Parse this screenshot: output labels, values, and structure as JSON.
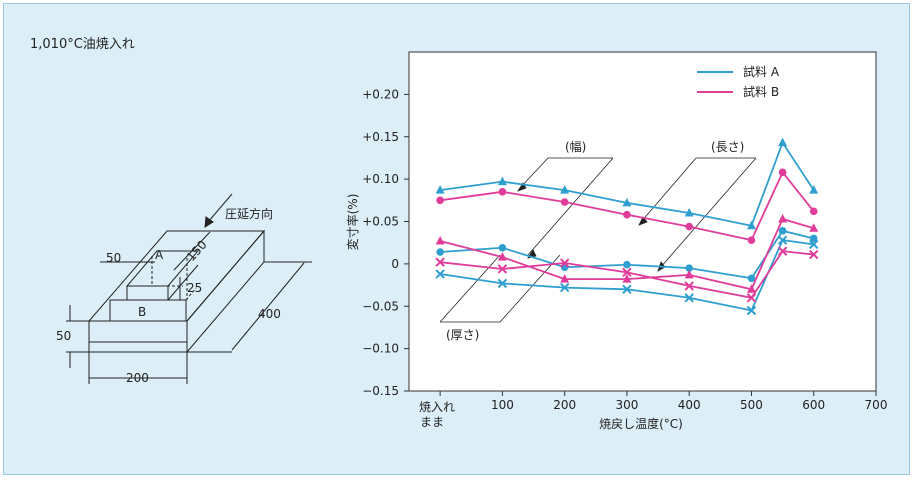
{
  "header": {
    "title": "1,010°C油焼入れ"
  },
  "specimen": {
    "rolling_direction_label": "圧延方向",
    "dim_50_top": "50",
    "dim_150": "150",
    "dim_25": "25",
    "dim_400": "400",
    "dim_50_side": "50",
    "dim_200": "200",
    "label_a": "A",
    "label_b": "B"
  },
  "chart_data": {
    "type": "line",
    "ylabel": "変寸率(%)",
    "xlabel": "焼戻し温度(°C)",
    "ylim": [
      -0.15,
      0.25
    ],
    "xlim": [
      -50,
      700
    ],
    "y_ticks": [
      -0.15,
      -0.1,
      -0.05,
      0,
      0.05,
      0.1,
      0.15,
      0.2
    ],
    "y_tick_labels": [
      "−0.15",
      "−0.10",
      "−0.05",
      "0",
      "+0.05",
      "+0.10",
      "+0.15",
      "+0.20"
    ],
    "x_ticks": [
      0,
      100,
      200,
      300,
      400,
      500,
      600,
      700
    ],
    "x_tick_labels": [
      "",
      "100",
      "200",
      "300",
      "400",
      "500",
      "600",
      "700"
    ],
    "x0_label_line1": "焼入れ",
    "x0_label_line2": "まま",
    "x": [
      0,
      100,
      200,
      300,
      400,
      500,
      550,
      600
    ],
    "colors": {
      "A": "#2f9fd0",
      "B": "#e03c9a"
    },
    "legend": [
      {
        "name": "試料 A",
        "color": "#2f9fd0"
      },
      {
        "name": "試料 B",
        "color": "#e03c9a"
      }
    ],
    "series": [
      {
        "sample": "A",
        "color": "#2f9fd0",
        "marker": "triangle",
        "values": [
          0.087,
          0.097,
          0.087,
          0.072,
          0.06,
          0.045,
          0.143,
          0.087
        ]
      },
      {
        "sample": "B",
        "color": "#e03c9a",
        "marker": "circle",
        "values": [
          0.075,
          0.085,
          0.073,
          0.058,
          0.044,
          0.028,
          0.108,
          0.062
        ]
      },
      {
        "sample": "A",
        "color": "#2f9fd0",
        "marker": "circle",
        "values": [
          0.014,
          0.019,
          -0.004,
          -0.001,
          -0.005,
          -0.017,
          0.039,
          0.03
        ]
      },
      {
        "sample": "B",
        "color": "#e03c9a",
        "marker": "triangle",
        "values": [
          0.027,
          0.008,
          -0.018,
          -0.018,
          -0.013,
          -0.03,
          0.053,
          0.042
        ]
      },
      {
        "sample": "A",
        "color": "#2f9fd0",
        "marker": "cross",
        "values": [
          -0.012,
          -0.023,
          -0.028,
          -0.03,
          -0.04,
          -0.055,
          0.028,
          0.023
        ]
      },
      {
        "sample": "B",
        "color": "#e03c9a",
        "marker": "cross",
        "values": [
          0.002,
          -0.006,
          0.001,
          -0.01,
          -0.026,
          -0.04,
          0.015,
          0.011
        ]
      }
    ],
    "annotations": [
      "(幅)",
      "(長さ)",
      "(厚さ)"
    ]
  }
}
